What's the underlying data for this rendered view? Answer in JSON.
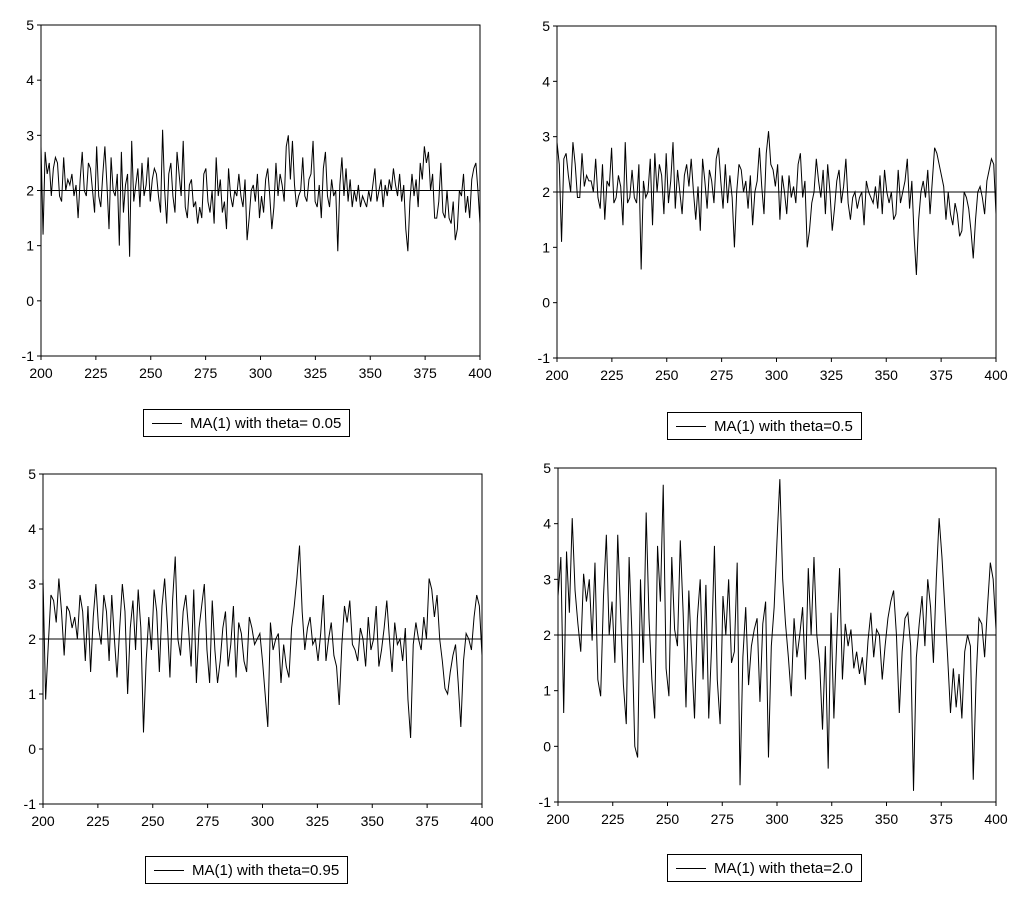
{
  "chart_data": [
    {
      "type": "line",
      "legend": "MA(1) with theta= 0.05",
      "mean": 2,
      "xlim": [
        200,
        400
      ],
      "ylim": [
        -1,
        5
      ],
      "xticks": [
        200,
        225,
        250,
        275,
        300,
        325,
        350,
        375,
        400
      ],
      "yticks": [
        -1,
        0,
        1,
        2,
        3,
        4,
        5
      ],
      "x_start": 200,
      "series": [
        {
          "values": [
            2.8,
            1.2,
            2.7,
            2.3,
            2.5,
            1.9,
            2.4,
            2.6,
            2.5,
            1.9,
            1.8,
            2.6,
            2.0,
            2.2,
            2.1,
            2.3,
            1.9,
            2.1,
            1.5,
            2.2,
            2.7,
            2.0,
            1.9,
            2.5,
            2.4,
            2.0,
            1.6,
            2.8,
            1.9,
            1.7,
            2.3,
            2.8,
            2.1,
            1.3,
            2.6,
            2.0,
            1.9,
            2.3,
            1.0,
            2.7,
            1.6,
            2.1,
            2.3,
            0.8,
            2.9,
            1.8,
            2.1,
            2.4,
            1.7,
            2.5,
            1.9,
            2.1,
            2.6,
            1.8,
            2.2,
            2.4,
            2.3,
            1.9,
            1.6,
            3.1,
            2.0,
            1.4,
            2.3,
            2.5,
            1.9,
            1.6,
            2.7,
            2.3,
            1.9,
            2.9,
            1.7,
            1.5,
            2.1,
            2.2,
            1.7,
            1.8,
            1.4,
            1.7,
            1.5,
            2.3,
            2.4,
            1.8,
            1.6,
            2.0,
            1.4,
            2.6,
            1.9,
            2.2,
            1.6,
            1.8,
            1.3,
            2.4,
            1.9,
            1.7,
            2.0,
            1.9,
            2.3,
            1.9,
            1.7,
            2.2,
            1.1,
            1.5,
            2.0,
            2.1,
            1.8,
            2.3,
            1.5,
            1.9,
            1.6,
            2.2,
            2.4,
            1.9,
            1.3,
            1.7,
            2.5,
            1.9,
            2.3,
            2.1,
            1.8,
            2.8,
            3.0,
            2.2,
            2.9,
            2.1,
            1.7,
            1.9,
            2.0,
            2.6,
            1.9,
            1.8,
            2.2,
            2.3,
            2.9,
            1.8,
            1.7,
            2.1,
            1.5,
            2.4,
            2.7,
            1.9,
            1.7,
            2.2,
            1.9,
            2.0,
            0.9,
            2.1,
            2.6,
            1.9,
            2.4,
            1.8,
            2.2,
            1.7,
            2.0,
            1.8,
            2.1,
            1.7,
            1.9,
            1.8,
            1.7,
            2.0,
            1.8,
            2.1,
            2.4,
            1.8,
            2.0,
            2.2,
            1.7,
            2.1,
            1.9,
            2.2,
            2.0,
            2.4,
            2.1,
            1.9,
            2.3,
            1.8,
            2.1,
            1.3,
            0.9,
            1.8,
            2.3,
            1.9,
            2.2,
            1.7,
            2.5,
            2.2,
            2.8,
            2.5,
            2.7,
            2.0,
            2.3,
            1.5,
            1.5,
            1.8,
            2.5,
            1.6,
            1.5,
            2.0,
            1.5,
            1.4,
            1.8,
            1.1,
            1.3,
            2.0,
            1.9,
            2.3,
            1.6,
            1.9,
            1.5,
            2.2,
            2.4,
            2.5,
            2.0,
            1.4
          ]
        }
      ]
    },
    {
      "type": "line",
      "legend": "MA(1) with theta=0.5",
      "mean": 2,
      "xlim": [
        200,
        400
      ],
      "ylim": [
        -1,
        5
      ],
      "xticks": [
        200,
        225,
        250,
        275,
        300,
        325,
        350,
        375,
        400
      ],
      "yticks": [
        -1,
        0,
        1,
        2,
        3,
        4,
        5
      ],
      "x_start": 200,
      "series": [
        {
          "values": [
            2.9,
            2.5,
            1.1,
            2.6,
            2.7,
            2.3,
            2.0,
            2.9,
            2.5,
            1.9,
            1.9,
            2.7,
            2.1,
            2.3,
            2.2,
            2.2,
            2.0,
            2.6,
            1.9,
            1.7,
            2.5,
            1.5,
            2.2,
            2.1,
            2.8,
            1.8,
            1.9,
            2.3,
            2.1,
            1.4,
            2.9,
            1.8,
            1.9,
            2.4,
            1.9,
            1.8,
            2.5,
            0.6,
            2.2,
            1.9,
            2.0,
            2.6,
            1.4,
            2.7,
            2.0,
            2.5,
            2.3,
            1.6,
            2.7,
            1.8,
            2.2,
            2.9,
            1.7,
            2.4,
            2.0,
            1.6,
            2.3,
            2.5,
            2.1,
            2.6,
            2.0,
            1.5,
            2.1,
            1.3,
            2.6,
            2.2,
            1.7,
            2.4,
            2.2,
            1.8,
            2.6,
            2.8,
            2.2,
            1.7,
            2.5,
            1.8,
            2.3,
            1.9,
            1.0,
            2.0,
            2.5,
            2.4,
            2.0,
            2.2,
            1.7,
            2.3,
            1.4,
            2.0,
            2.2,
            2.8,
            2.1,
            1.6,
            2.7,
            3.1,
            2.5,
            2.4,
            2.1,
            2.5,
            1.5,
            2.3,
            2.0,
            1.6,
            2.3,
            1.9,
            2.1,
            1.8,
            2.5,
            2.7,
            1.9,
            2.2,
            1.0,
            1.3,
            1.8,
            2.0,
            2.6,
            2.2,
            1.9,
            2.4,
            1.6,
            2.5,
            2.0,
            1.3,
            1.7,
            2.2,
            2.4,
            1.8,
            2.1,
            2.6,
            1.8,
            1.5,
            1.9,
            2.0,
            1.7,
            1.9,
            2.0,
            1.4,
            2.2,
            2.0,
            1.9,
            1.8,
            2.1,
            1.7,
            2.3,
            1.6,
            2.4,
            2.0,
            1.8,
            2.0,
            1.5,
            1.6,
            2.4,
            1.8,
            2.0,
            2.2,
            2.6,
            1.7,
            2.2,
            1.2,
            0.5,
            1.5,
            2.0,
            2.2,
            1.9,
            2.4,
            1.6,
            2.2,
            2.8,
            2.7,
            2.5,
            2.3,
            2.1,
            1.5,
            2.0,
            1.6,
            1.4,
            1.8,
            1.6,
            1.2,
            1.3,
            2.0,
            1.9,
            1.7,
            1.3,
            0.8,
            1.5,
            2.0,
            2.1,
            1.9,
            1.6,
            2.2,
            2.4,
            2.6,
            2.5,
            1.6
          ]
        }
      ]
    },
    {
      "type": "line",
      "legend": "MA(1) with theta=0.95",
      "mean": 2,
      "xlim": [
        200,
        400
      ],
      "ylim": [
        -1,
        5
      ],
      "xticks": [
        200,
        225,
        250,
        275,
        300,
        325,
        350,
        375,
        400
      ],
      "yticks": [
        -1,
        0,
        1,
        2,
        3,
        4,
        5
      ],
      "x_start": 200,
      "series": [
        {
          "values": [
            3.1,
            0.9,
            1.9,
            2.8,
            2.7,
            2.3,
            3.1,
            2.5,
            1.7,
            2.6,
            2.5,
            2.2,
            2.4,
            2.0,
            2.8,
            2.5,
            1.6,
            2.6,
            1.4,
            2.4,
            3.0,
            2.2,
            1.9,
            2.8,
            2.5,
            1.6,
            2.8,
            2.0,
            1.3,
            2.2,
            3.0,
            2.5,
            1.0,
            2.2,
            2.7,
            1.8,
            2.9,
            2.2,
            0.3,
            1.6,
            2.4,
            1.8,
            2.9,
            2.5,
            1.4,
            2.6,
            3.1,
            2.3,
            1.3,
            2.7,
            3.5,
            2.0,
            1.7,
            2.5,
            2.8,
            2.2,
            1.5,
            2.9,
            1.2,
            2.2,
            2.6,
            3.0,
            1.8,
            1.2,
            2.7,
            1.8,
            1.2,
            1.6,
            2.2,
            2.5,
            1.5,
            1.9,
            2.6,
            1.3,
            2.3,
            2.1,
            1.6,
            1.4,
            2.4,
            2.2,
            1.9,
            2.0,
            2.1,
            1.6,
            1.0,
            0.4,
            2.3,
            1.8,
            2.0,
            2.1,
            1.2,
            1.9,
            1.5,
            1.3,
            2.2,
            2.6,
            3.1,
            3.7,
            2.5,
            1.8,
            2.2,
            2.4,
            1.9,
            2.0,
            1.6,
            2.1,
            2.8,
            1.6,
            2.0,
            2.3,
            1.7,
            1.5,
            0.8,
            1.9,
            2.6,
            2.3,
            2.7,
            1.9,
            1.8,
            1.6,
            2.2,
            2.0,
            1.5,
            2.4,
            1.8,
            2.0,
            2.6,
            1.5,
            1.8,
            2.2,
            2.7,
            2.0,
            1.4,
            2.3,
            1.9,
            2.0,
            1.6,
            2.2,
            0.9,
            0.2,
            1.9,
            2.3,
            2.0,
            1.8,
            2.4,
            2.0,
            3.1,
            2.9,
            2.4,
            2.8,
            2.0,
            1.6,
            1.1,
            1.0,
            1.4,
            1.7,
            1.9,
            1.2,
            0.4,
            1.6,
            2.1,
            2.0,
            1.8,
            2.4,
            2.8,
            2.6,
            1.7
          ]
        }
      ]
    },
    {
      "type": "line",
      "legend": "MA(1) with theta=2.0",
      "mean": 2,
      "xlim": [
        200,
        400
      ],
      "ylim": [
        -1,
        5
      ],
      "xticks": [
        200,
        225,
        250,
        275,
        300,
        325,
        350,
        375,
        400
      ],
      "yticks": [
        -1,
        0,
        1,
        2,
        3,
        4,
        5
      ],
      "x_start": 200,
      "series": [
        {
          "values": [
            2.7,
            3.4,
            0.6,
            3.5,
            2.4,
            4.1,
            2.8,
            2.2,
            1.7,
            3.1,
            2.6,
            3.0,
            1.9,
            3.3,
            1.2,
            0.9,
            2.7,
            3.8,
            2.0,
            2.6,
            1.5,
            3.8,
            2.4,
            1.1,
            0.4,
            3.4,
            2.0,
            0.0,
            -0.2,
            3.0,
            1.5,
            4.2,
            2.3,
            1.2,
            0.5,
            3.6,
            2.6,
            4.7,
            1.4,
            0.9,
            3.4,
            2.1,
            1.8,
            3.7,
            2.4,
            0.7,
            2.8,
            1.6,
            0.5,
            2.3,
            3.0,
            1.2,
            2.9,
            0.5,
            1.8,
            3.6,
            1.2,
            0.4,
            2.7,
            2.0,
            3.0,
            1.5,
            1.7,
            3.3,
            -0.7,
            1.6,
            2.5,
            1.1,
            1.8,
            2.1,
            2.3,
            0.8,
            2.2,
            2.6,
            -0.2,
            1.8,
            2.5,
            3.7,
            4.8,
            3.0,
            2.2,
            1.6,
            0.9,
            2.3,
            1.6,
            2.0,
            2.5,
            1.2,
            3.2,
            2.0,
            3.4,
            2.0,
            1.5,
            0.3,
            1.8,
            -0.4,
            2.4,
            0.5,
            1.9,
            3.2,
            1.2,
            2.2,
            1.8,
            2.1,
            1.4,
            1.7,
            1.3,
            1.6,
            1.1,
            1.9,
            2.4,
            1.6,
            2.1,
            2.0,
            1.2,
            1.8,
            2.3,
            2.6,
            2.8,
            2.0,
            0.6,
            1.7,
            2.3,
            2.4,
            1.8,
            -0.8,
            1.6,
            2.2,
            2.7,
            1.8,
            3.0,
            2.5,
            1.5,
            3.0,
            4.1,
            3.4,
            2.5,
            1.6,
            0.6,
            1.4,
            0.7,
            1.3,
            0.5,
            1.7,
            2.0,
            1.8,
            -0.6,
            1.2,
            2.3,
            2.2,
            1.6,
            2.5,
            3.3,
            3.0,
            2.1
          ]
        }
      ]
    }
  ]
}
